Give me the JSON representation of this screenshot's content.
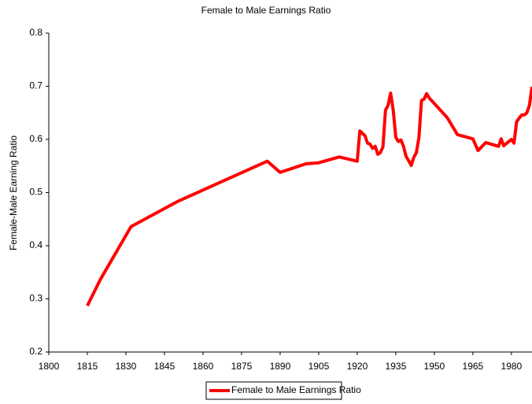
{
  "chart_data": {
    "type": "line",
    "title": "Female to Male Earnings Ratio",
    "y_label": "Female-Male Earning Ratio",
    "x": [
      1815,
      1820,
      1832,
      1850,
      1885,
      1890,
      1900,
      1905,
      1913,
      1920,
      1921,
      1923,
      1924,
      1925,
      1926,
      1927,
      1928,
      1929,
      1930,
      1931,
      1932,
      1933,
      1934,
      1935,
      1936,
      1937,
      1938,
      1939,
      1940,
      1941,
      1942,
      1943,
      1944,
      1945,
      1946,
      1947,
      1948,
      1955,
      1959,
      1965,
      1967,
      1970,
      1975,
      1976,
      1977,
      1979,
      1980,
      1981,
      1982,
      1983,
      1984,
      1985,
      1986,
      1987,
      1988
    ],
    "series": [
      {
        "name": "Female to Male Earnings Ratio",
        "color": "#ff0000",
        "values": [
          0.287,
          0.336,
          0.436,
          0.483,
          0.559,
          0.538,
          0.554,
          0.556,
          0.567,
          0.559,
          0.616,
          0.607,
          0.593,
          0.591,
          0.583,
          0.587,
          0.572,
          0.575,
          0.586,
          0.655,
          0.664,
          0.687,
          0.655,
          0.604,
          0.596,
          0.599,
          0.587,
          0.568,
          0.56,
          0.551,
          0.566,
          0.575,
          0.603,
          0.673,
          0.676,
          0.686,
          0.678,
          0.641,
          0.609,
          0.601,
          0.579,
          0.594,
          0.587,
          0.601,
          0.588,
          0.596,
          0.6,
          0.593,
          0.633,
          0.64,
          0.646,
          0.646,
          0.65,
          0.664,
          0.699
        ]
      }
    ],
    "xlim": [
      1800,
      1988
    ],
    "xticks": [
      1800,
      1815,
      1830,
      1845,
      1860,
      1875,
      1890,
      1905,
      1920,
      1935,
      1950,
      1965,
      1980
    ],
    "ylim": [
      0.2,
      0.8
    ],
    "yticks": [
      0.2,
      0.3,
      0.4,
      0.5,
      0.6,
      0.7,
      0.8
    ],
    "grid": false,
    "legend": "bottom"
  }
}
